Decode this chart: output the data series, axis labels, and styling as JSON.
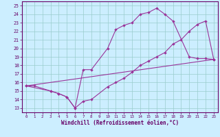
{
  "xlabel": "Windchill (Refroidissement éolien,°C)",
  "bg_color": "#cceeff",
  "line_color": "#993399",
  "xlim": [
    -0.5,
    23.5
  ],
  "ylim": [
    12.5,
    25.5
  ],
  "xticks": [
    0,
    1,
    2,
    3,
    4,
    5,
    6,
    7,
    8,
    9,
    10,
    11,
    12,
    13,
    14,
    15,
    16,
    17,
    18,
    19,
    20,
    21,
    22,
    23
  ],
  "yticks": [
    13,
    14,
    15,
    16,
    17,
    18,
    19,
    20,
    21,
    22,
    23,
    24,
    25
  ],
  "grid_color": "#99cccc",
  "text_color": "#660066",
  "line1_x": [
    0,
    1,
    3,
    4,
    5,
    6,
    7,
    8,
    10,
    11,
    12,
    13,
    14,
    15,
    16,
    17,
    18,
    20,
    21,
    22,
    23
  ],
  "line1_y": [
    15.6,
    15.6,
    15.0,
    14.7,
    14.3,
    13.0,
    17.5,
    17.5,
    20.0,
    22.2,
    22.7,
    23.0,
    24.0,
    24.2,
    24.7,
    24.0,
    23.2,
    19.0,
    18.8,
    18.8,
    18.7
  ],
  "line2_x": [
    0,
    3,
    4,
    5,
    6,
    7,
    8,
    10,
    11,
    12,
    13,
    14,
    15,
    16,
    17,
    18,
    19,
    20,
    21,
    22,
    23
  ],
  "line2_y": [
    15.6,
    15.0,
    14.7,
    14.3,
    13.0,
    13.8,
    14.0,
    15.5,
    16.0,
    16.5,
    17.2,
    18.0,
    18.5,
    19.0,
    19.5,
    20.5,
    21.0,
    22.0,
    22.8,
    23.2,
    18.7
  ],
  "line3_x": [
    0,
    23
  ],
  "line3_y": [
    15.6,
    18.7
  ],
  "linewidth": 0.8,
  "markersize": 2.0
}
